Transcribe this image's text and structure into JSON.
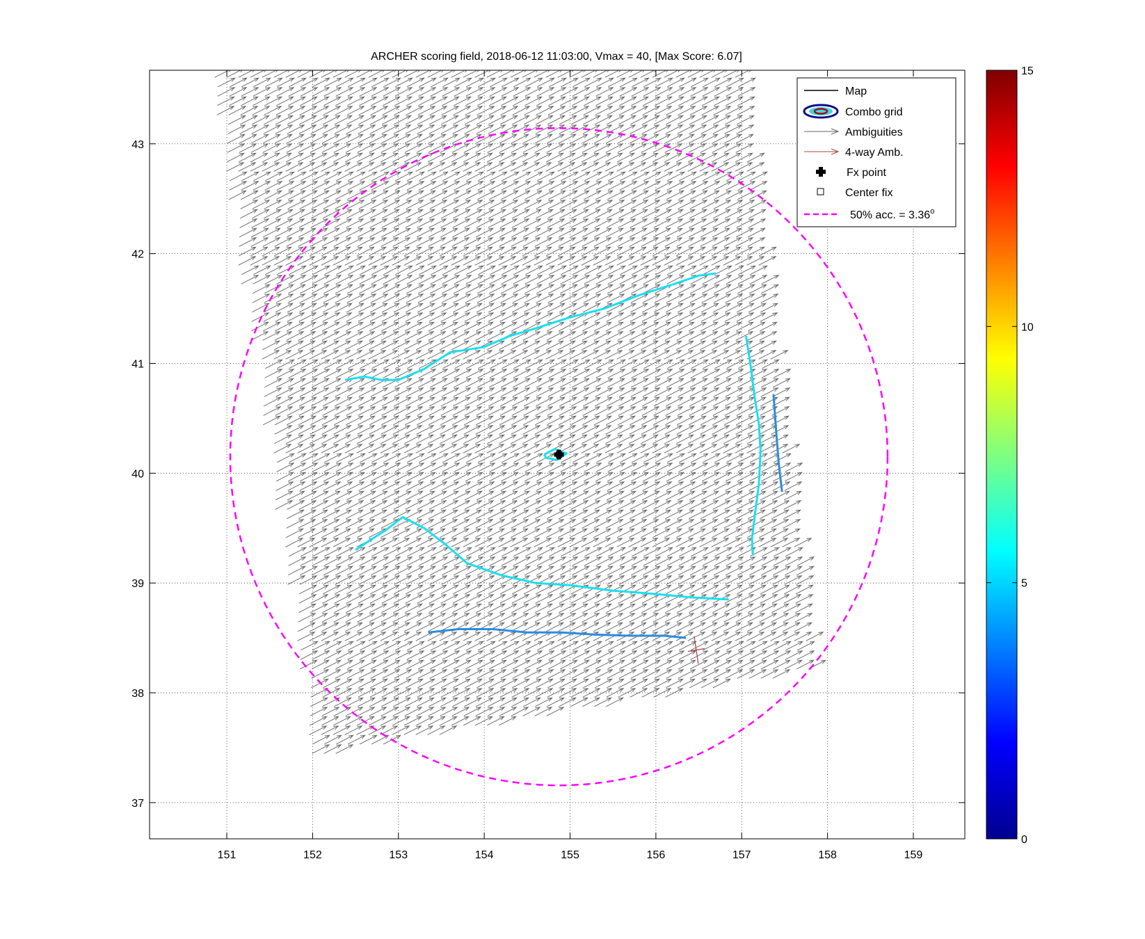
{
  "chart_data": {
    "type": "scatter",
    "title": "ARCHER scoring field, 2018-06-12 11:03:00, Vmax = 40, [Max Score: 6.07]",
    "xlabel": "",
    "ylabel": "",
    "xlim": [
      150.1,
      159.6
    ],
    "ylim": [
      36.67,
      43.67
    ],
    "x_ticks": [
      151,
      152,
      153,
      154,
      155,
      156,
      157,
      158,
      159
    ],
    "y_ticks": [
      37,
      38,
      39,
      40,
      41,
      42,
      43
    ],
    "grid": true,
    "legend_position": "top-right",
    "legend": [
      {
        "label": "Map",
        "symbol": "line",
        "color": "#000000"
      },
      {
        "label": "Combo grid",
        "symbol": "contour",
        "color": "#0a0a8a"
      },
      {
        "label": "Ambiguities",
        "symbol": "arrow",
        "color": "#666666"
      },
      {
        "label": "4-way Amb.",
        "symbol": "arrow",
        "color": "#b04040"
      },
      {
        "label": "Fx point",
        "symbol": "plus",
        "color": "#000000"
      },
      {
        "label": "Center fix",
        "symbol": "square",
        "color": "#000000"
      },
      {
        "label": "50% acc. = 3.36",
        "superscript": "o",
        "symbol": "dashed",
        "color": "#ff00ff"
      }
    ],
    "circle": {
      "center": [
        154.87,
        40.15
      ],
      "radius_deg": 3.36,
      "color": "#ff00ff"
    },
    "fx_point": [
      154.87,
      40.17
    ],
    "center_fix": [
      154.87,
      40.17
    ],
    "colorbar": {
      "min": 0,
      "max": 15,
      "ticks": [
        0,
        5,
        10,
        15
      ],
      "colormap": "jet"
    },
    "swath": {
      "corners": [
        [
          152.1,
          37.45
        ],
        [
          157.9,
          38.22
        ],
        [
          157.05,
          43.65
        ],
        [
          150.9,
          43.65
        ]
      ],
      "u": 0.2,
      "v": 0.08,
      "color": "#6a6a6a"
    },
    "contours": [
      {
        "color": "#19e0f0",
        "points": [
          [
            152.38,
            40.85
          ],
          [
            152.6,
            40.88
          ],
          [
            152.8,
            40.85
          ],
          [
            153.0,
            40.85
          ],
          [
            153.3,
            40.95
          ],
          [
            153.6,
            41.1
          ],
          [
            154.0,
            41.15
          ],
          [
            154.3,
            41.25
          ],
          [
            154.6,
            41.32
          ],
          [
            155.0,
            41.42
          ],
          [
            155.4,
            41.5
          ],
          [
            155.8,
            41.62
          ],
          [
            156.2,
            41.72
          ],
          [
            156.5,
            41.8
          ],
          [
            156.7,
            41.82
          ]
        ]
      },
      {
        "color": "#19e0f0",
        "points": [
          [
            157.05,
            41.25
          ],
          [
            157.1,
            41.0
          ],
          [
            157.15,
            40.7
          ],
          [
            157.2,
            40.45
          ],
          [
            157.22,
            40.2
          ],
          [
            157.2,
            39.9
          ],
          [
            157.15,
            39.6
          ],
          [
            157.12,
            39.4
          ],
          [
            157.13,
            39.25
          ]
        ]
      },
      {
        "color": "#2a8ce0",
        "points": [
          [
            157.37,
            40.72
          ],
          [
            157.4,
            40.4
          ],
          [
            157.43,
            40.1
          ],
          [
            157.47,
            39.83
          ]
        ]
      },
      {
        "color": "#19e0f0",
        "points": [
          [
            152.5,
            39.3
          ],
          [
            152.65,
            39.38
          ],
          [
            152.85,
            39.48
          ],
          [
            153.05,
            39.6
          ],
          [
            153.3,
            39.5
          ],
          [
            153.55,
            39.35
          ],
          [
            153.8,
            39.18
          ],
          [
            154.2,
            39.07
          ],
          [
            154.6,
            39.0
          ],
          [
            155.0,
            38.98
          ],
          [
            155.5,
            38.93
          ],
          [
            156.0,
            38.9
          ],
          [
            156.4,
            38.87
          ],
          [
            156.85,
            38.85
          ]
        ]
      },
      {
        "color": "#2a8ce0",
        "points": [
          [
            153.35,
            38.55
          ],
          [
            153.7,
            38.58
          ],
          [
            154.1,
            38.58
          ],
          [
            154.5,
            38.55
          ],
          [
            154.9,
            38.55
          ],
          [
            155.3,
            38.53
          ],
          [
            155.7,
            38.52
          ],
          [
            156.1,
            38.52
          ],
          [
            156.35,
            38.5
          ]
        ]
      },
      {
        "color": "#19e0f0",
        "points": [
          [
            154.7,
            40.17
          ],
          [
            154.82,
            40.22
          ],
          [
            154.96,
            40.18
          ],
          [
            154.85,
            40.12
          ],
          [
            154.72,
            40.14
          ],
          [
            154.7,
            40.17
          ]
        ]
      }
    ],
    "four_way": [
      156.47,
      38.39
    ]
  }
}
